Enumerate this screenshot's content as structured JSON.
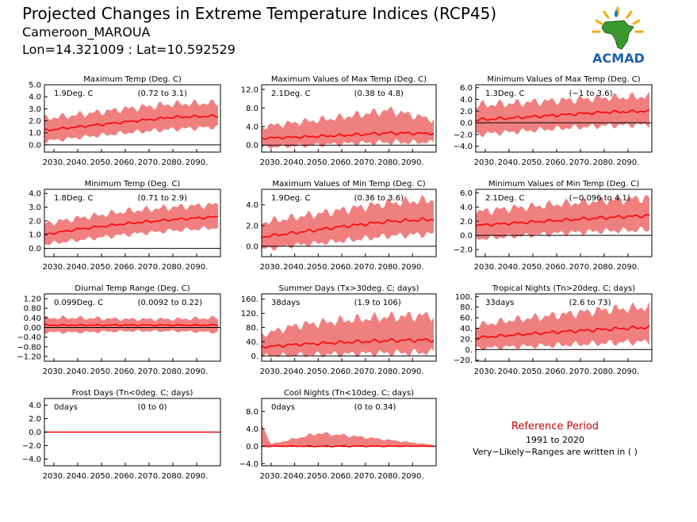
{
  "header": {
    "title": "Projected Changes in Extreme Temperature Indices (RCP45)",
    "location": "Cameroon_MAROUA",
    "coords": "Lon=14.321009 : Lat=10.592529"
  },
  "logo": {
    "text": "ACMAD",
    "icon": "africa-logo-icon"
  },
  "reference": {
    "title": "Reference Period",
    "period": "1991 to 2020",
    "note": "Very−Likely−Ranges are written in ( )"
  },
  "colors": {
    "band": "#f08080",
    "mean_line": "#ff0000",
    "zero_line": "#000000",
    "ref_title": "#cc0000"
  },
  "chart_data": [
    {
      "type": "line",
      "title": "Maximum Temp (Deg. C)",
      "summary": "1.9Deg. C",
      "range": "(0.72 to 3.1)",
      "x_ticks": [
        "2030.",
        "2040.",
        "2050.",
        "2060.",
        "2070.",
        "2080.",
        "2090."
      ],
      "y_ticks": [
        "5.0",
        "4.0",
        "3.0",
        "2.0",
        "1.0",
        "0.0"
      ],
      "ylim": [
        -0.6,
        5.0
      ],
      "series": [
        {
          "x": [
            2026,
            2040,
            2060,
            2080,
            2099
          ],
          "mean": [
            1.2,
            1.5,
            1.9,
            2.3,
            2.4
          ],
          "low": [
            0.3,
            0.6,
            1.0,
            1.3,
            1.5
          ],
          "high": [
            2.2,
            2.5,
            3.0,
            3.4,
            3.5
          ]
        }
      ]
    },
    {
      "type": "line",
      "title": "Maximum Values of Max Temp (Deg. C)",
      "summary": "2.1Deg. C",
      "range": "(0.38 to 4.8)",
      "x_ticks": [
        "2030.",
        "2040.",
        "2050.",
        "2060.",
        "2070.",
        "2080.",
        "2090."
      ],
      "y_ticks": [
        "12.0",
        "8.0",
        "4.0",
        "0.0"
      ],
      "ylim": [
        -1.5,
        13.0
      ],
      "series": [
        {
          "x": [
            2026,
            2040,
            2060,
            2080,
            2099
          ],
          "mean": [
            1.5,
            1.7,
            2.1,
            2.6,
            2.5
          ],
          "low": [
            -0.5,
            -0.2,
            0.3,
            0.6,
            0.6
          ],
          "high": [
            4.0,
            4.8,
            6.0,
            7.5,
            5.5
          ]
        }
      ]
    },
    {
      "type": "line",
      "title": "Minimum Values of Max Temp (Deg. C)",
      "summary": "1.3Deg. C",
      "range": "(−1 to 3.6)",
      "x_ticks": [
        "2030.",
        "2040.",
        "2050.",
        "2060.",
        "2070.",
        "2080.",
        "2090."
      ],
      "y_ticks": [
        "6.0",
        "4.0",
        "2.0",
        "0.0",
        "−2.0",
        "−4.0"
      ],
      "ylim": [
        -5.0,
        6.5
      ],
      "series": [
        {
          "x": [
            2026,
            2040,
            2060,
            2080,
            2099
          ],
          "mean": [
            0.5,
            0.8,
            1.3,
            1.8,
            2.0
          ],
          "low": [
            -2.0,
            -1.6,
            -1.0,
            -0.5,
            -0.3
          ],
          "high": [
            3.0,
            3.3,
            3.8,
            4.3,
            4.5
          ]
        }
      ]
    },
    {
      "type": "line",
      "title": "Minimum Temp (Deg. C)",
      "summary": "1.8Deg. C",
      "range": "(0.71 to 2.9)",
      "x_ticks": [
        "2030.",
        "2040.",
        "2050.",
        "2060.",
        "2070.",
        "2080.",
        "2090."
      ],
      "y_ticks": [
        "4.0",
        "3.0",
        "2.0",
        "1.0",
        "0.0"
      ],
      "ylim": [
        -0.6,
        4.3
      ],
      "series": [
        {
          "x": [
            2026,
            2040,
            2060,
            2080,
            2099
          ],
          "mean": [
            1.0,
            1.4,
            1.8,
            2.1,
            2.3
          ],
          "low": [
            0.3,
            0.6,
            1.0,
            1.3,
            1.5
          ],
          "high": [
            1.8,
            2.2,
            2.7,
            3.0,
            3.2
          ]
        }
      ]
    },
    {
      "type": "line",
      "title": "Maximum Values of Min Temp (Deg. C)",
      "summary": "1.9Deg. C",
      "range": "(0.36 to 3.6)",
      "x_ticks": [
        "2030.",
        "2040.",
        "2050.",
        "2060.",
        "2070.",
        "2080.",
        "2090."
      ],
      "y_ticks": [
        "4.0",
        "2.0",
        "0.0"
      ],
      "ylim": [
        -1.0,
        5.5
      ],
      "series": [
        {
          "x": [
            2026,
            2040,
            2060,
            2080,
            2099
          ],
          "mean": [
            0.9,
            1.3,
            1.9,
            2.4,
            2.6
          ],
          "low": [
            -0.3,
            0.1,
            0.5,
            1.0,
            1.2
          ],
          "high": [
            2.3,
            2.8,
            3.5,
            4.2,
            4.5
          ]
        }
      ]
    },
    {
      "type": "line",
      "title": "Minimum Values of Min Temp (Deg. C)",
      "summary": "2.1Deg. C",
      "range": "(−0.096 to 4.1)",
      "x_ticks": [
        "2030.",
        "2040.",
        "2050.",
        "2060.",
        "2070.",
        "2080.",
        "2090."
      ],
      "y_ticks": [
        "6.0",
        "4.0",
        "2.0",
        "0.0",
        "−2.0"
      ],
      "ylim": [
        -3.0,
        6.5
      ],
      "series": [
        {
          "x": [
            2026,
            2040,
            2060,
            2080,
            2099
          ],
          "mean": [
            1.4,
            1.7,
            2.1,
            2.5,
            2.8
          ],
          "low": [
            -0.5,
            -0.2,
            0.3,
            0.6,
            0.8
          ],
          "high": [
            3.3,
            3.8,
            4.4,
            4.9,
            5.3
          ]
        }
      ]
    },
    {
      "type": "line",
      "title": "Diurnal Temp Range (Deg. C)",
      "summary": "0.099Deg. C",
      "range": "(0.0092 to 0.22)",
      "x_ticks": [
        "2030.",
        "2040.",
        "2050.",
        "2060.",
        "2070.",
        "2080.",
        "2090."
      ],
      "y_ticks": [
        "1.20",
        "0.80",
        "0.40",
        "0.00",
        "−0.40",
        "−0.80",
        "−1.20"
      ],
      "ylim": [
        -1.4,
        1.4
      ],
      "series": [
        {
          "x": [
            2026,
            2040,
            2060,
            2080,
            2099
          ],
          "mean": [
            0.1,
            0.1,
            0.1,
            0.1,
            0.1
          ],
          "low": [
            -0.2,
            -0.2,
            -0.15,
            -0.15,
            -0.2
          ],
          "high": [
            0.4,
            0.4,
            0.35,
            0.35,
            0.4
          ]
        }
      ]
    },
    {
      "type": "line",
      "title": "Summer Days (Tx>30deg. C; days)",
      "summary": "38days",
      "range": "(1.9 to 106)",
      "x_ticks": [
        "2030.",
        "2040.",
        "2050.",
        "2060.",
        "2070.",
        "2080.",
        "2090."
      ],
      "y_ticks": [
        "160.",
        "120.",
        "80.",
        "40.",
        "0."
      ],
      "ylim": [
        -15,
        175
      ],
      "series": [
        {
          "x": [
            2026,
            2040,
            2060,
            2080,
            2099
          ],
          "mean": [
            25,
            32,
            38,
            43,
            45
          ],
          "low": [
            0,
            2,
            5,
            8,
            10
          ],
          "high": [
            60,
            85,
            100,
            110,
            115
          ]
        }
      ]
    },
    {
      "type": "line",
      "title": "Tropical Nights (Tn>20deg. C; days)",
      "summary": "33days",
      "range": "(2.6 to 73)",
      "x_ticks": [
        "2030.",
        "2040.",
        "2050.",
        "2060.",
        "2070.",
        "2080.",
        "2090."
      ],
      "y_ticks": [
        "100.",
        "80.",
        "60.",
        "40.",
        "20.",
        "0.",
        "−20."
      ],
      "ylim": [
        -22,
        105
      ],
      "series": [
        {
          "x": [
            2026,
            2040,
            2060,
            2080,
            2099
          ],
          "mean": [
            22,
            27,
            33,
            38,
            42
          ],
          "low": [
            2,
            5,
            8,
            12,
            15
          ],
          "high": [
            45,
            55,
            65,
            75,
            80
          ]
        }
      ]
    },
    {
      "type": "line",
      "title": "Frost Days (Tn<0deg. C; days)",
      "summary": "0days",
      "range": "(0 to 0)",
      "x_ticks": [
        "2030.",
        "2040.",
        "2050.",
        "2060.",
        "2070.",
        "2080.",
        "2090."
      ],
      "y_ticks": [
        "4.0",
        "2.0",
        "0.0",
        "−2.0",
        "−4.0"
      ],
      "ylim": [
        -5.0,
        5.0
      ],
      "series": [
        {
          "x": [
            2026,
            2099
          ],
          "mean": [
            0,
            0
          ],
          "low": [
            0,
            0
          ],
          "high": [
            0,
            0
          ]
        }
      ]
    },
    {
      "type": "line",
      "title": "Cool Nights (Tn<10deg. C; days)",
      "summary": "0days",
      "range": "(0 to 0.34)",
      "x_ticks": [
        "2030.",
        "2040.",
        "2050.",
        "2060.",
        "2070.",
        "2080.",
        "2090."
      ],
      "y_ticks": [
        "8.0",
        "4.0",
        "0.0",
        "−4.0"
      ],
      "ylim": [
        -4.5,
        11.0
      ],
      "series": [
        {
          "x": [
            2026,
            2030,
            2050,
            2062,
            2099
          ],
          "mean": [
            0,
            0,
            0,
            0,
            0
          ],
          "low": [
            0,
            0,
            0,
            0,
            0
          ],
          "high": [
            5.0,
            0.5,
            3.0,
            2.5,
            0.3
          ]
        }
      ]
    }
  ]
}
